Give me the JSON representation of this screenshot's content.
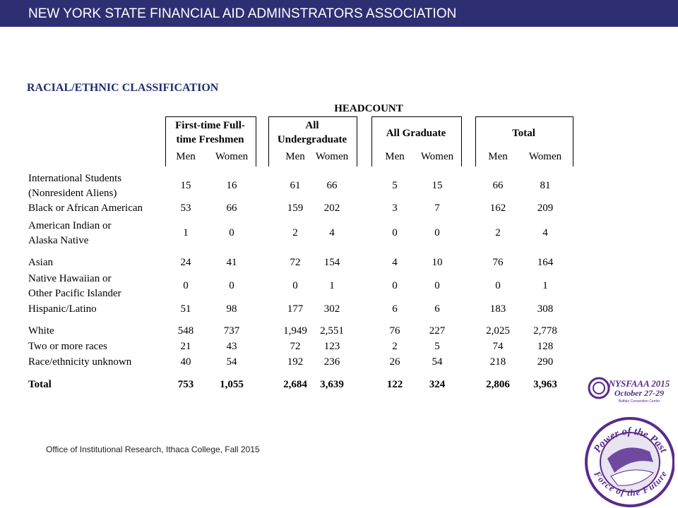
{
  "header": {
    "title": "NEW YORK STATE FINANCIAL AID ADMINSTRATORS ASSOCIATION"
  },
  "section_title": "RACIAL/ETHNIC CLASSIFICATION",
  "table": {
    "heading": "HEADCOUNT",
    "groups": [
      [
        "First-time Full-",
        "time Freshmen"
      ],
      [
        "All",
        "Undergraduate"
      ],
      [
        "All Graduate"
      ],
      [
        "Total"
      ]
    ],
    "subheaders": [
      "Men",
      "Women",
      "Men",
      "Women",
      "Men",
      "Women",
      "Men",
      "Women"
    ],
    "rows": [
      {
        "label": [
          "International Students",
          "(Nonresident Aliens)"
        ],
        "cells": [
          "15",
          "16",
          "61",
          "66",
          "5",
          "15",
          "66",
          "81"
        ]
      },
      {
        "label": [
          "Black or African American"
        ],
        "cells": [
          "53",
          "66",
          "159",
          "202",
          "3",
          "7",
          "162",
          "209"
        ]
      },
      {
        "label": [
          "American Indian or",
          "Alaska Native"
        ],
        "cells": [
          "1",
          "0",
          "2",
          "4",
          "0",
          "0",
          "2",
          "4"
        ]
      },
      {
        "label": [
          "Asian"
        ],
        "cells": [
          "24",
          "41",
          "72",
          "154",
          "4",
          "10",
          "76",
          "164"
        ]
      },
      {
        "label": [
          "Native Hawaiian or",
          "Other Pacific Islander"
        ],
        "cells": [
          "0",
          "0",
          "0",
          "1",
          "0",
          "0",
          "0",
          "1"
        ]
      },
      {
        "label": [
          "Hispanic/Latino"
        ],
        "cells": [
          "51",
          "98",
          "177",
          "302",
          "6",
          "6",
          "183",
          "308"
        ]
      },
      {
        "label": [
          "White"
        ],
        "cells": [
          "548",
          "737",
          "1,949",
          "2,551",
          "76",
          "227",
          "2,025",
          "2,778"
        ]
      },
      {
        "label": [
          "Two or more races"
        ],
        "cells": [
          "21",
          "43",
          "72",
          "123",
          "2",
          "5",
          "74",
          "128"
        ]
      },
      {
        "label": [
          "Race/ethnicity unknown"
        ],
        "cells": [
          "40",
          "54",
          "192",
          "236",
          "26",
          "54",
          "218",
          "290"
        ]
      },
      {
        "label": [
          "Total"
        ],
        "cells": [
          "753",
          "1,055",
          "2,684",
          "3,639",
          "122",
          "324",
          "2,806",
          "3,963"
        ]
      }
    ]
  },
  "source": "Office of Institutional Research, Ithaca College, Fall 2015",
  "logo": {
    "line1": "NYSFAAA 2015",
    "line2": "October 27-29",
    "line3": "Buffalo Convention Center",
    "arc_top": "Power of the Past",
    "arc_bottom": "Force of the Future"
  }
}
